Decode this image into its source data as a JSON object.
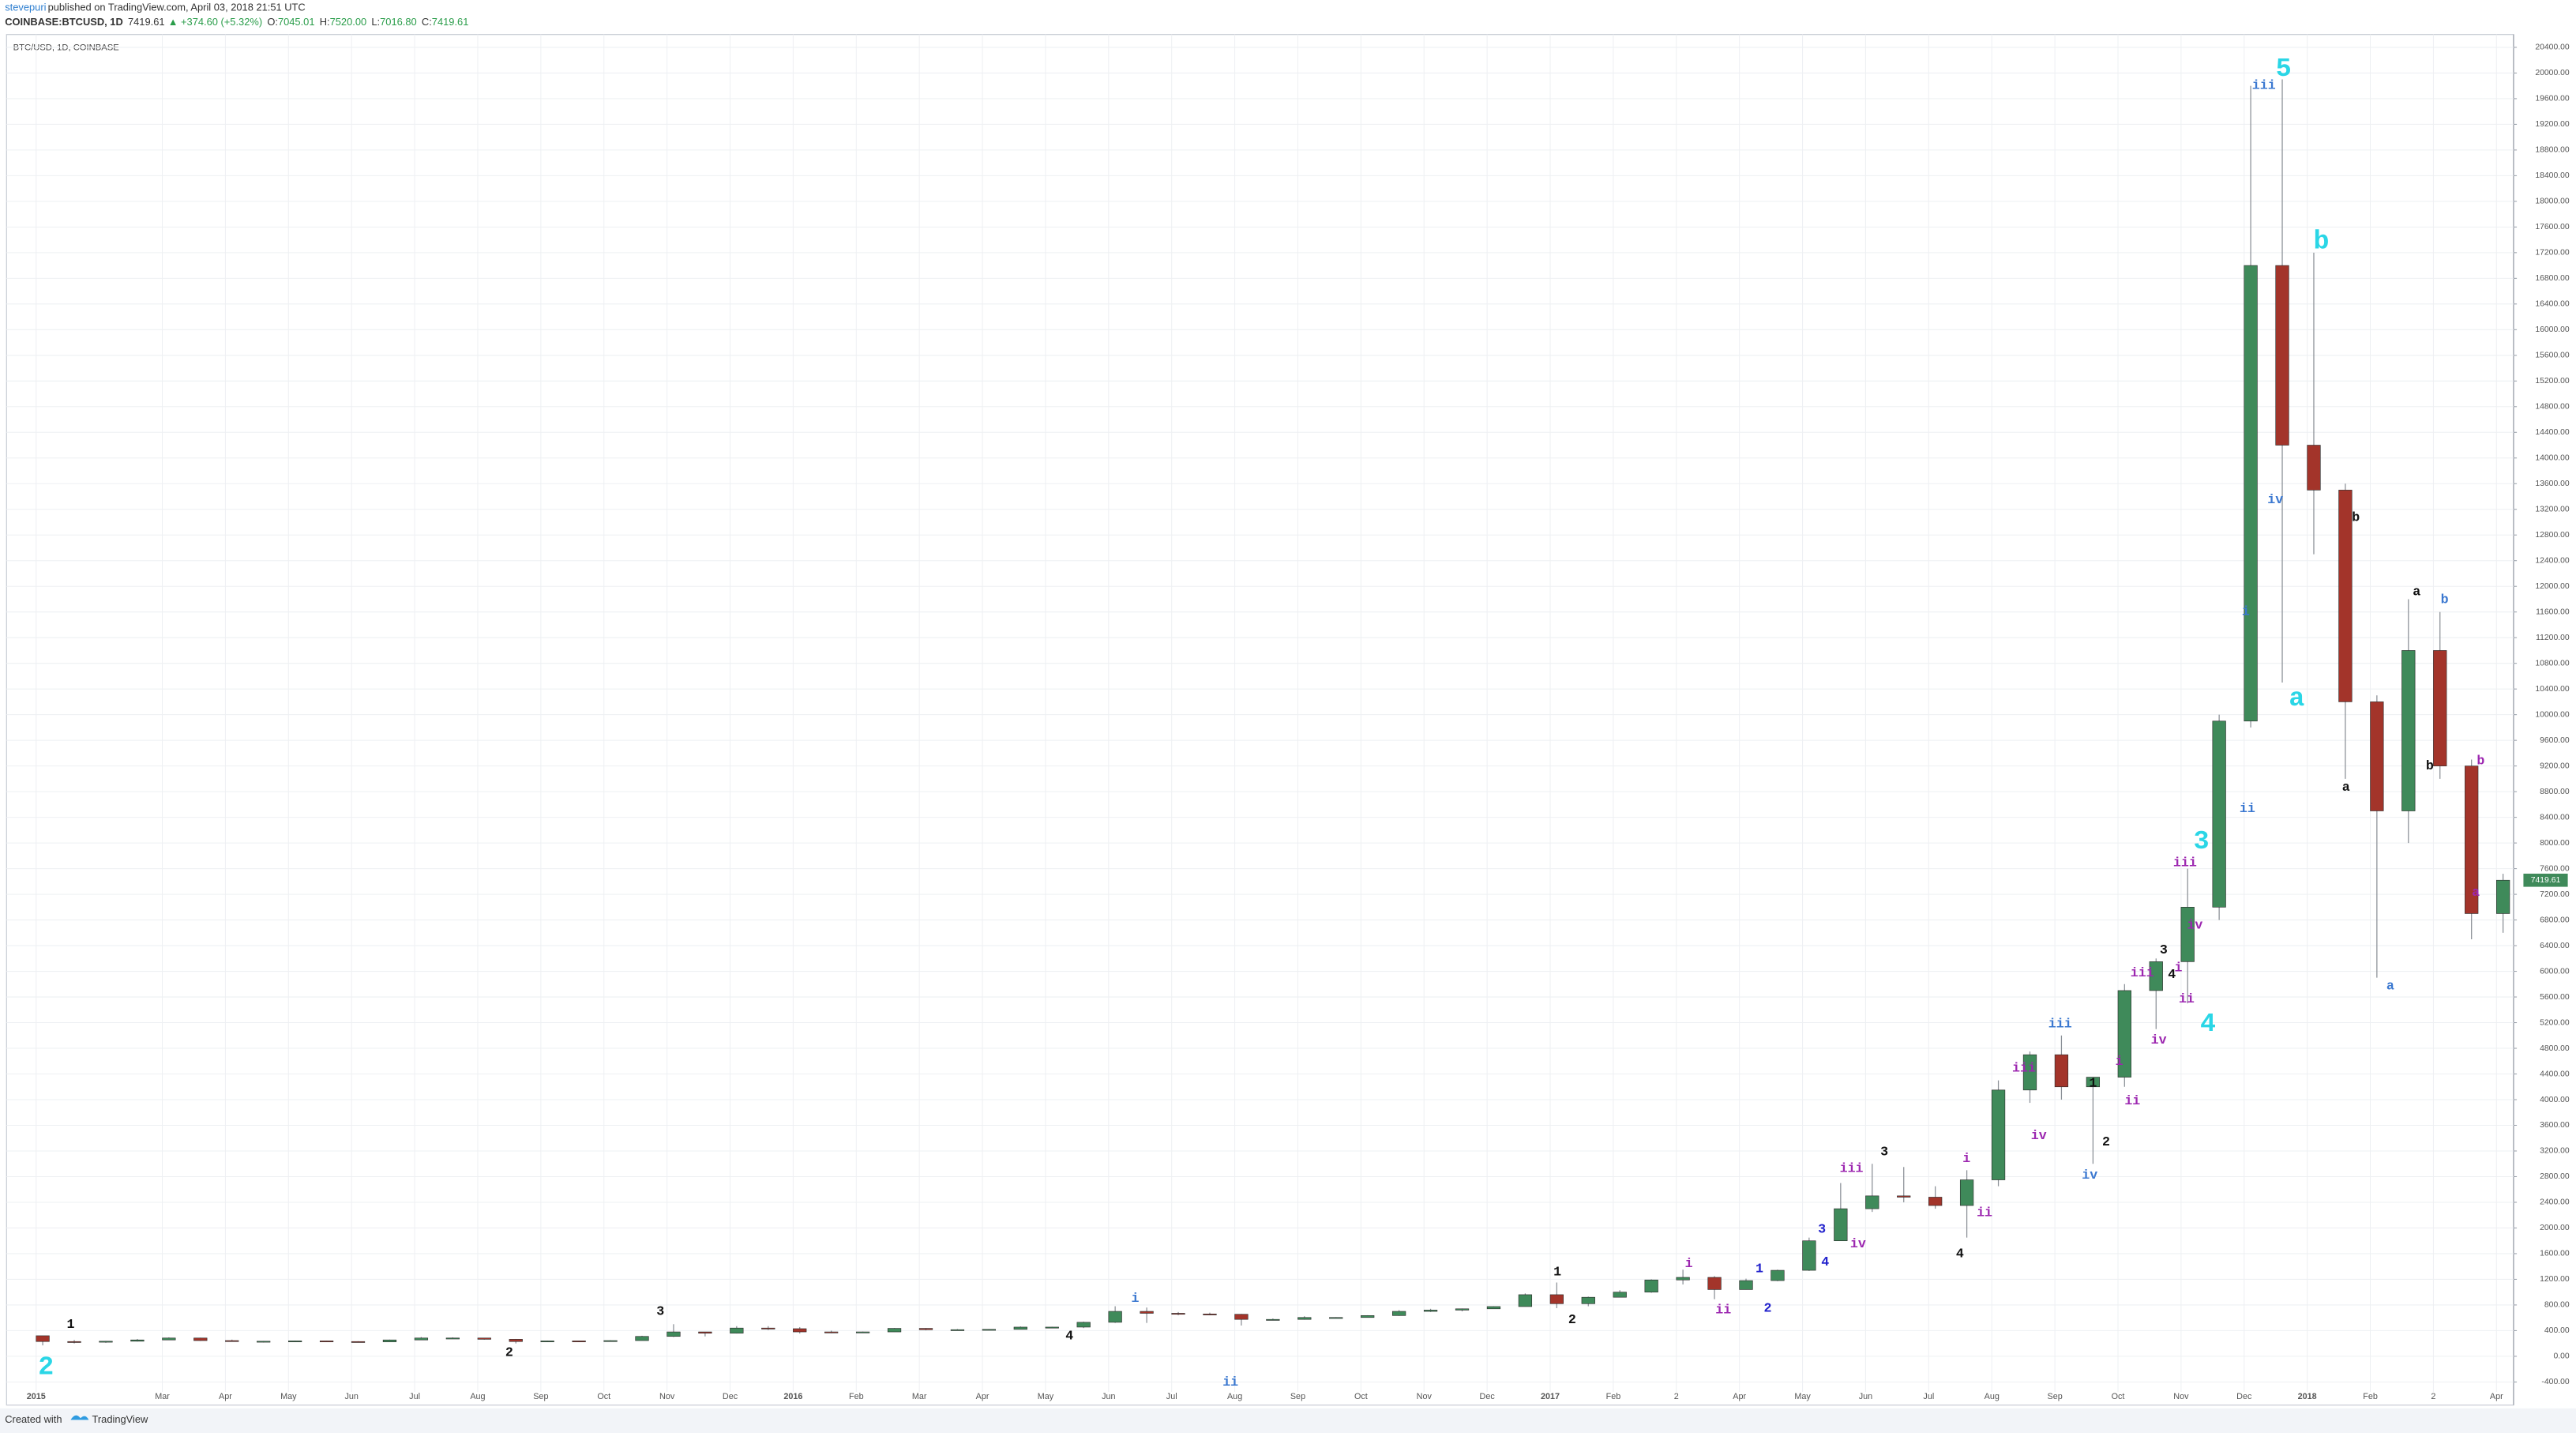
{
  "header": {
    "author": "stevepuri",
    "published": "published on TradingView.com, April 03, 2018 21:51 UTC",
    "symbol": "COINBASE:BTCUSD, 1D",
    "last": "7419.61",
    "change": "▲ +374.60 (+5.32%)",
    "ohlc": [
      {
        "label": "O:",
        "value": "7045.01"
      },
      {
        "label": "H:",
        "value": "7520.00"
      },
      {
        "label": "L:",
        "value": "7016.80"
      },
      {
        "label": "C:",
        "value": "7419.61"
      }
    ]
  },
  "footer": {
    "text": "Created with",
    "brand": "TradingView"
  },
  "chart_data": {
    "type": "candlestick",
    "title": "BTC/USD, 1D, COINBASE",
    "up_color": "#3f8a5a",
    "down_color": "#a3342a",
    "grid": true,
    "categories": [
      "2015",
      null,
      null,
      null,
      "Mar",
      null,
      "Apr",
      null,
      "May",
      null,
      "Jun",
      null,
      "Jul",
      null,
      "Aug",
      null,
      "Sep",
      null,
      "Oct",
      null,
      "Nov",
      null,
      "Dec",
      null,
      "2016",
      null,
      "Feb",
      null,
      "Mar",
      null,
      "Apr",
      null,
      "May",
      null,
      "Jun",
      null,
      "Jul",
      null,
      "Aug",
      null,
      "Sep",
      null,
      "Oct",
      null,
      "Nov",
      null,
      "Dec",
      null,
      "2017",
      null,
      "Feb",
      null,
      "2",
      null,
      "Apr",
      null,
      "May",
      null,
      "Jun",
      null,
      "Jul",
      null,
      "Aug",
      null,
      "Sep",
      null,
      "Oct",
      null,
      "Nov",
      null,
      "Dec",
      null,
      "2018",
      null,
      "Feb",
      null,
      "2",
      null,
      "Apr"
    ],
    "open": [
      320,
      230,
      220,
      235,
      255,
      285,
      245,
      235,
      235,
      240,
      230,
      225,
      255,
      285,
      285,
      265,
      230,
      240,
      235,
      245,
      310,
      380,
      360,
      440,
      430,
      380,
      375,
      380,
      435,
      415,
      415,
      420,
      455,
      455,
      530,
      700,
      670,
      660,
      655,
      575,
      575,
      605,
      605,
      635,
      700,
      720,
      740,
      775,
      960,
      820,
      920,
      1000,
      1190,
      1230,
      1040,
      1180,
      1340,
      1800,
      2300,
      2500,
      2480,
      2350,
      2750,
      4150,
      4700,
      4200,
      4350,
      5700,
      6150,
      7000,
      9900,
      17000,
      14200,
      13500,
      10200,
      8500,
      11000,
      9200,
      6900
    ],
    "high": [
      320,
      255,
      240,
      270,
      295,
      290,
      260,
      240,
      245,
      242,
      235,
      260,
      300,
      295,
      285,
      270,
      245,
      245,
      250,
      320,
      500,
      380,
      470,
      470,
      455,
      400,
      385,
      440,
      440,
      425,
      425,
      465,
      460,
      540,
      780,
      760,
      690,
      680,
      660,
      590,
      625,
      610,
      640,
      720,
      740,
      745,
      780,
      980,
      1150,
      930,
      1030,
      1200,
      1350,
      1250,
      1210,
      1350,
      1850,
      2700,
      3000,
      2950,
      2650,
      2900,
      4300,
      4750,
      5000,
      4200,
      5800,
      6200,
      7600,
      10000,
      19800,
      19900,
      17200,
      13600,
      10300,
      11800,
      11600,
      9300,
      7520
    ],
    "low": [
      170,
      200,
      210,
      230,
      255,
      240,
      235,
      215,
      230,
      232,
      222,
      225,
      255,
      270,
      260,
      200,
      225,
      225,
      235,
      245,
      300,
      310,
      355,
      410,
      355,
      360,
      365,
      380,
      405,
      405,
      415,
      420,
      440,
      440,
      520,
      520,
      640,
      640,
      480,
      560,
      570,
      590,
      605,
      630,
      690,
      700,
      740,
      775,
      750,
      780,
      920,
      990,
      1120,
      890,
      1040,
      1170,
      1330,
      1800,
      2250,
      2400,
      2300,
      1850,
      2650,
      3950,
      4000,
      3000,
      4200,
      5100,
      5500,
      6800,
      9800,
      10500,
      12500,
      9000,
      5900,
      8000,
      9000,
      6500,
      6600
    ],
    "close": [
      230,
      220,
      235,
      255,
      285,
      245,
      235,
      235,
      240,
      230,
      225,
      255,
      285,
      285,
      265,
      230,
      240,
      235,
      245,
      310,
      380,
      360,
      440,
      430,
      380,
      375,
      380,
      435,
      415,
      415,
      420,
      455,
      455,
      530,
      700,
      670,
      660,
      655,
      575,
      575,
      605,
      605,
      635,
      700,
      720,
      740,
      775,
      960,
      820,
      920,
      1000,
      1190,
      1230,
      1040,
      1180,
      1340,
      1800,
      2300,
      2500,
      2480,
      2350,
      2750,
      4150,
      4700,
      4200,
      4350,
      5700,
      6150,
      7000,
      9900,
      17000,
      14200,
      13500,
      10200,
      8500,
      11000,
      9200,
      6900,
      7420
    ],
    "ylim": [
      -760,
      20600
    ],
    "yticks": [
      {
        "value": -400,
        "label": "-400.00"
      },
      {
        "value": 0,
        "label": "0.00"
      },
      {
        "value": 400,
        "label": "400.00"
      },
      {
        "value": 800,
        "label": "800.00"
      },
      {
        "value": 1200,
        "label": "1200.00"
      },
      {
        "value": 1600,
        "label": "1600.00"
      },
      {
        "value": 2000,
        "label": "2000.00"
      },
      {
        "value": 2400,
        "label": "2400.00"
      },
      {
        "value": 2800,
        "label": "2800.00"
      },
      {
        "value": 3200,
        "label": "3200.00"
      },
      {
        "value": 3600,
        "label": "3600.00"
      },
      {
        "value": 4000,
        "label": "4000.00"
      },
      {
        "value": 4400,
        "label": "4400.00"
      },
      {
        "value": 4800,
        "label": "4800.00"
      },
      {
        "value": 5200,
        "label": "5200.00"
      },
      {
        "value": 5600,
        "label": "5600.00"
      },
      {
        "value": 6000,
        "label": "6000.00"
      },
      {
        "value": 6400,
        "label": "6400.00"
      },
      {
        "value": 6800,
        "label": "6800.00"
      },
      {
        "value": 7200,
        "label": "7200.00"
      },
      {
        "value": 7600,
        "label": "7600.00"
      },
      {
        "value": 8000,
        "label": "8000.00"
      },
      {
        "value": 8400,
        "label": "8400.00"
      },
      {
        "value": 8800,
        "label": "8800.00"
      },
      {
        "value": 9200,
        "label": "9200.00"
      },
      {
        "value": 9600,
        "label": "9600.00"
      },
      {
        "value": 10000,
        "label": "10000.00"
      },
      {
        "value": 10400,
        "label": "10400.00"
      },
      {
        "value": 10800,
        "label": "10800.00"
      },
      {
        "value": 11200,
        "label": "11200.00"
      },
      {
        "value": 11600,
        "label": "11600.00"
      },
      {
        "value": 12000,
        "label": "12000.00"
      },
      {
        "value": 12400,
        "label": "12400.00"
      },
      {
        "value": 12800,
        "label": "12800.00"
      },
      {
        "value": 13200,
        "label": "13200.00"
      },
      {
        "value": 13600,
        "label": "13600.00"
      },
      {
        "value": 14000,
        "label": "14000.00"
      },
      {
        "value": 14400,
        "label": "14400.00"
      },
      {
        "value": 14800,
        "label": "14800.00"
      },
      {
        "value": 15200,
        "label": "15200.00"
      },
      {
        "value": 15600,
        "label": "15600.00"
      },
      {
        "value": 16000,
        "label": "16000.00"
      },
      {
        "value": 16400,
        "label": "16400.00"
      },
      {
        "value": 16800,
        "label": "16800.00"
      },
      {
        "value": 17200,
        "label": "17200.00"
      },
      {
        "value": 17600,
        "label": "17600.00"
      },
      {
        "value": 18000,
        "label": "18000.00"
      },
      {
        "value": 18400,
        "label": "18400.00"
      },
      {
        "value": 18800,
        "label": "18800.00"
      },
      {
        "value": 19200,
        "label": "19200.00"
      },
      {
        "value": 19600,
        "label": "19600.00"
      },
      {
        "value": 20000,
        "label": "20000.00"
      },
      {
        "value": 20400,
        "label": "20400.00"
      }
    ],
    "last_price": {
      "value": 7419.61,
      "label": "7419.61"
    },
    "annotations": [
      {
        "text": "2",
        "color": "#2ad6e6",
        "size": "large"
      },
      {
        "text": "3",
        "color": "#2ad6e6",
        "size": "large"
      },
      {
        "text": "4",
        "color": "#2ad6e6",
        "size": "large"
      },
      {
        "text": "5",
        "color": "#2ad6e6",
        "size": "large"
      },
      {
        "text": "a",
        "color": "#2ad6e6",
        "size": "large"
      },
      {
        "text": "b",
        "color": "#2ad6e6",
        "size": "large"
      },
      {
        "text": "1",
        "color": "#111111",
        "size": "small"
      },
      {
        "text": "2",
        "color": "#111111",
        "size": "small"
      },
      {
        "text": "3",
        "color": "#111111",
        "size": "small"
      },
      {
        "text": "4",
        "color": "#111111",
        "size": "small"
      },
      {
        "text": "1",
        "color": "#111111",
        "size": "small"
      },
      {
        "text": "2",
        "color": "#111111",
        "size": "small"
      },
      {
        "text": "3",
        "color": "#111111",
        "size": "small"
      },
      {
        "text": "4",
        "color": "#111111",
        "size": "small"
      },
      {
        "text": "1",
        "color": "#111111",
        "size": "small"
      },
      {
        "text": "2",
        "color": "#111111",
        "size": "small"
      },
      {
        "text": "3",
        "color": "#111111",
        "size": "small"
      },
      {
        "text": "4",
        "color": "#111111",
        "size": "small"
      },
      {
        "text": "b",
        "color": "#111111",
        "size": "small"
      },
      {
        "text": "a",
        "color": "#111111",
        "size": "small"
      },
      {
        "text": "a",
        "color": "#111111",
        "size": "small"
      },
      {
        "text": "b",
        "color": "#111111",
        "size": "small"
      },
      {
        "text": "i",
        "color": "#3b78d0",
        "size": "small"
      },
      {
        "text": "ii",
        "color": "#3b78d0",
        "size": "small"
      },
      {
        "text": "1",
        "color": "#2222cc",
        "size": "small"
      },
      {
        "text": "2",
        "color": "#2222cc",
        "size": "small"
      },
      {
        "text": "3",
        "color": "#2222cc",
        "size": "small"
      },
      {
        "text": "4",
        "color": "#2222cc",
        "size": "small"
      },
      {
        "text": "iii",
        "color": "#3b78d0",
        "size": "small"
      },
      {
        "text": "iv",
        "color": "#3b78d0",
        "size": "small"
      },
      {
        "text": "iii",
        "color": "#3b78d0",
        "size": "small"
      },
      {
        "text": "iv",
        "color": "#3b78d0",
        "size": "small"
      },
      {
        "text": "i",
        "color": "#3b78d0",
        "size": "small"
      },
      {
        "text": "ii",
        "color": "#3b78d0",
        "size": "small"
      },
      {
        "text": "b",
        "color": "#3b78d0",
        "size": "small"
      },
      {
        "text": "a",
        "color": "#3b78d0",
        "size": "small"
      },
      {
        "text": "i",
        "color": "#9c27b0",
        "size": "small"
      },
      {
        "text": "ii",
        "color": "#9c27b0",
        "size": "small"
      },
      {
        "text": "iii",
        "color": "#9c27b0",
        "size": "small"
      },
      {
        "text": "iv",
        "color": "#9c27b0",
        "size": "small"
      },
      {
        "text": "i",
        "color": "#9c27b0",
        "size": "small"
      },
      {
        "text": "ii",
        "color": "#9c27b0",
        "size": "small"
      },
      {
        "text": "iii",
        "color": "#9c27b0",
        "size": "small"
      },
      {
        "text": "iv",
        "color": "#9c27b0",
        "size": "small"
      },
      {
        "text": "i",
        "color": "#9c27b0",
        "size": "small"
      },
      {
        "text": "ii",
        "color": "#9c27b0",
        "size": "small"
      },
      {
        "text": "iii",
        "color": "#9c27b0",
        "size": "small"
      },
      {
        "text": "iv",
        "color": "#9c27b0",
        "size": "small"
      },
      {
        "text": "iii",
        "color": "#9c27b0",
        "size": "small"
      },
      {
        "text": "iv",
        "color": "#9c27b0",
        "size": "small"
      },
      {
        "text": "i",
        "color": "#9c27b0",
        "size": "small"
      },
      {
        "text": "ii",
        "color": "#9c27b0",
        "size": "small"
      },
      {
        "text": "b",
        "color": "#9c27b0",
        "size": "small"
      },
      {
        "text": "a",
        "color": "#9c27b0",
        "size": "small"
      }
    ]
  }
}
